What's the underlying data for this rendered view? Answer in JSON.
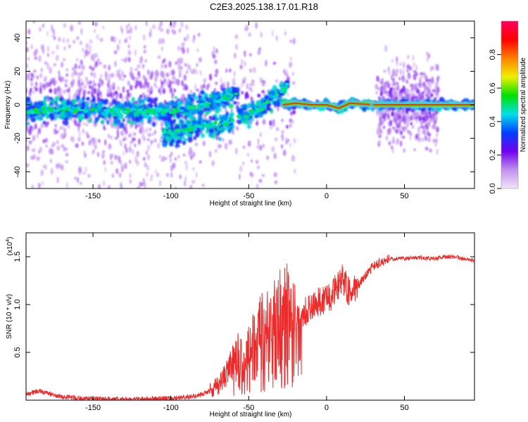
{
  "title": "C2E3.2025.138.17.01.R18",
  "colors": {
    "snr_line": "#ee2a2a"
  },
  "chart_data": [
    {
      "type": "heatmap",
      "xlabel": "Height of straight line (km)",
      "ylabel": "Frequency (Hz)",
      "xlim": [
        -193,
        95
      ],
      "ylim": [
        -50,
        50
      ],
      "x_ticks": [
        "-150",
        "-100",
        "-50",
        "0",
        "50"
      ],
      "x_tick_values": [
        -150,
        -100,
        -50,
        0,
        50
      ],
      "y_ticks": [
        "-40",
        "-20",
        "0",
        "20",
        "40"
      ],
      "y_tick_values": [
        -40,
        -20,
        0,
        20,
        40
      ],
      "colorbar": {
        "label": "Normalized spectral amplitude",
        "range": [
          0,
          1
        ],
        "ticks": [
          "0.0",
          "0.2",
          "0.4",
          "0.6",
          "0.8"
        ],
        "tick_values": [
          0.0,
          0.2,
          0.4,
          0.6,
          0.8
        ],
        "colors": [
          "#f0e6f7",
          "#c090ee",
          "#7000ee",
          "#0040ff",
          "#00e0e8",
          "#00e000",
          "#f0f000",
          "#ff8000",
          "#ff0000",
          "#ff0060"
        ]
      },
      "ridges": [
        {
          "x": [
            -193,
            -175,
            -160,
            -140,
            -120,
            -100,
            -85,
            -70,
            -57
          ],
          "y": [
            -4,
            -3,
            -3,
            -4,
            -4,
            -4,
            -1,
            2,
            7
          ]
        },
        {
          "x": [
            -105,
            -90,
            -75,
            -60
          ],
          "y": [
            -17,
            -15,
            -12,
            -10
          ]
        },
        {
          "x": [
            -57,
            -45,
            -38,
            -30,
            -25
          ],
          "y": [
            -7,
            -4,
            2,
            7,
            12
          ]
        },
        {
          "x": [
            -28,
            -20,
            -10,
            0,
            8,
            15,
            30
          ],
          "y": [
            0,
            1,
            0,
            0,
            -2,
            1,
            0
          ]
        },
        {
          "x": [
            30,
            50,
            70,
            95
          ],
          "y": [
            0,
            0,
            0,
            0
          ]
        }
      ]
    },
    {
      "type": "line",
      "xlabel": "Height of straight line (km)",
      "ylabel": "SNR (10 * v/v)",
      "y_multiplier": "(x10",
      "y_multiplier_exp": "4",
      "y_multiplier_close": ")",
      "xlim": [
        -193,
        95
      ],
      "ylim": [
        0,
        1.75
      ],
      "x_ticks": [
        "-150",
        "-100",
        "-50",
        "0",
        "50"
      ],
      "x_tick_values": [
        -150,
        -100,
        -50,
        0,
        50
      ],
      "y_ticks": [
        "0.5",
        "1.0",
        "1.5"
      ],
      "y_tick_values": [
        0.5,
        1.0,
        1.5
      ],
      "series": [
        {
          "x": [
            -193,
            -185,
            -175,
            -160,
            -140,
            -120,
            -100,
            -90,
            -80,
            -75,
            -70,
            -65,
            -62,
            -58,
            -55,
            -52,
            -48,
            -45,
            -42,
            -38,
            -35,
            -32,
            -28,
            -25,
            -22,
            -20,
            -18,
            -15,
            -12,
            -10,
            -8,
            -5,
            -2,
            0,
            3,
            5,
            8,
            10,
            12,
            15,
            18,
            20,
            25,
            30,
            35,
            40,
            50,
            60,
            70,
            75,
            80,
            85,
            90,
            95
          ],
          "y": [
            0.06,
            0.1,
            0.05,
            0.02,
            0.01,
            0.01,
            0.02,
            0.03,
            0.06,
            0.1,
            0.15,
            0.25,
            0.35,
            0.45,
            0.55,
            0.5,
            0.6,
            0.7,
            0.8,
            0.85,
            0.9,
            0.95,
            1.0,
            1.05,
            0.9,
            0.85,
            0.88,
            0.9,
            0.95,
            0.98,
            1.0,
            1.02,
            1.05,
            1.08,
            1.1,
            1.15,
            1.2,
            1.3,
            1.2,
            1.1,
            1.15,
            1.2,
            1.3,
            1.4,
            1.45,
            1.48,
            1.48,
            1.49,
            1.48,
            1.5,
            1.5,
            1.49,
            1.47,
            1.46
          ]
        }
      ]
    }
  ]
}
